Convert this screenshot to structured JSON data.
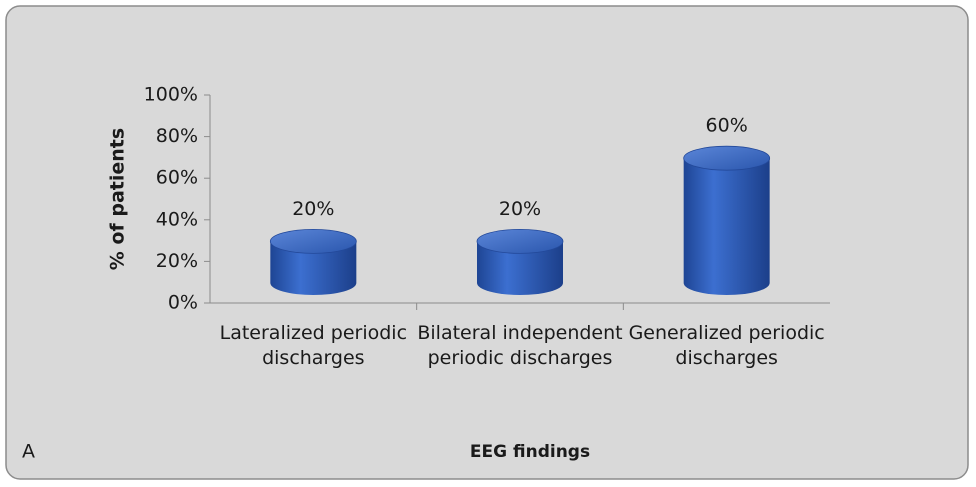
{
  "chart_data": {
    "type": "bar",
    "panel_label": "A",
    "xlabel": "EEG findings",
    "ylabel": "% of patients",
    "categories": [
      "Lateralized periodic discharges",
      "Bilateral independent periodic discharges",
      "Generalized periodic discharges"
    ],
    "values": [
      20,
      20,
      60
    ],
    "value_labels": [
      "20%",
      "20%",
      "60%"
    ],
    "color": "#2f5fbf",
    "ylim": [
      0,
      100
    ],
    "yticks": [
      {
        "value": 0,
        "label": "0%"
      },
      {
        "value": 20,
        "label": "20%"
      },
      {
        "value": 40,
        "label": "40%"
      },
      {
        "value": 60,
        "label": "60%"
      },
      {
        "value": 80,
        "label": "80%"
      },
      {
        "value": 100,
        "label": "100%"
      }
    ],
    "grid": false
  }
}
